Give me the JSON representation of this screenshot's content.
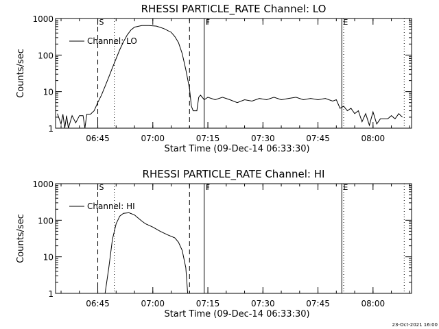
{
  "footer": {
    "timestamp": "23-Oct-2021 16:00"
  },
  "chart_data": [
    {
      "type": "line",
      "title": "RHESSI PARTICLE_RATE Channel: LO",
      "xlabel": "Start Time (09-Dec-14 06:33:30)",
      "ylabel": "Counts/sec",
      "yscale": "log",
      "xlim": [
        "06:33:30",
        "08:10:30"
      ],
      "ylim": [
        1,
        1000
      ],
      "x_ticks": [
        "06:45",
        "07:00",
        "07:15",
        "07:30",
        "07:45",
        "08:00"
      ],
      "y_ticks": [
        "1",
        "10",
        "100",
        "1000"
      ],
      "legend": {
        "position": "top-left",
        "entries": [
          "Channel: LO"
        ]
      },
      "series": [
        {
          "name": "Channel: LO",
          "color": "#000000",
          "points": [
            [
              "06:34:00",
              2.5
            ],
            [
              "06:35:00",
              1.3
            ],
            [
              "06:35:30",
              2.4
            ],
            [
              "06:36:00",
              1.0
            ],
            [
              "06:36:30",
              2.2
            ],
            [
              "06:37:00",
              1.0
            ],
            [
              "06:38:00",
              2.2
            ],
            [
              "06:39:00",
              1.4
            ],
            [
              "06:40:00",
              2.2
            ],
            [
              "06:41:00",
              2.2
            ],
            [
              "06:41:30",
              1.0
            ],
            [
              "06:42:00",
              2.4
            ],
            [
              "06:43:00",
              2.4
            ],
            [
              "06:44:00",
              3.0
            ],
            [
              "06:45:00",
              5.0
            ],
            [
              "06:46:00",
              8.0
            ],
            [
              "06:47:00",
              14.0
            ],
            [
              "06:48:00",
              25.0
            ],
            [
              "06:49:00",
              45.0
            ],
            [
              "06:50:00",
              80.0
            ],
            [
              "06:51:00",
              140.0
            ],
            [
              "06:52:00",
              230.0
            ],
            [
              "06:53:00",
              350.0
            ],
            [
              "06:54:00",
              480.0
            ],
            [
              "06:55:00",
              580.0
            ],
            [
              "06:57:00",
              640.0
            ],
            [
              "06:59:00",
              640.0
            ],
            [
              "07:01:00",
              620.0
            ],
            [
              "07:03:00",
              530.0
            ],
            [
              "07:05:00",
              420.0
            ],
            [
              "07:06:00",
              320.0
            ],
            [
              "07:07:00",
              220.0
            ],
            [
              "07:08:00",
              110.0
            ],
            [
              "07:09:00",
              40.0
            ],
            [
              "07:10:00",
              12.0
            ],
            [
              "07:10:30",
              4.0
            ],
            [
              "07:11:00",
              3.0
            ],
            [
              "07:12:00",
              3.0
            ],
            [
              "07:12:30",
              7.0
            ],
            [
              "07:13:00",
              8.0
            ],
            [
              "07:14:00",
              6.0
            ],
            [
              "07:15:00",
              7.0
            ],
            [
              "07:17:00",
              6.0
            ],
            [
              "07:19:00",
              7.0
            ],
            [
              "07:21:00",
              6.0
            ],
            [
              "07:23:00",
              5.0
            ],
            [
              "07:25:00",
              6.0
            ],
            [
              "07:27:00",
              5.5
            ],
            [
              "07:29:00",
              6.5
            ],
            [
              "07:31:00",
              6.0
            ],
            [
              "07:33:00",
              7.0
            ],
            [
              "07:35:00",
              6.0
            ],
            [
              "07:37:00",
              6.5
            ],
            [
              "07:39:00",
              7.0
            ],
            [
              "07:41:00",
              6.0
            ],
            [
              "07:43:00",
              6.5
            ],
            [
              "07:45:00",
              6.0
            ],
            [
              "07:47:00",
              6.5
            ],
            [
              "07:49:00",
              5.5
            ],
            [
              "07:50:00",
              6.0
            ],
            [
              "07:51:00",
              3.5
            ],
            [
              "07:52:00",
              4.0
            ],
            [
              "07:53:00",
              3.0
            ],
            [
              "07:54:00",
              3.5
            ],
            [
              "07:55:00",
              2.5
            ],
            [
              "07:56:00",
              3.0
            ],
            [
              "07:57:00",
              1.5
            ],
            [
              "07:58:00",
              2.5
            ],
            [
              "07:59:00",
              1.2
            ],
            [
              "08:00:00",
              2.8
            ],
            [
              "08:01:00",
              1.3
            ],
            [
              "08:02:00",
              1.8
            ],
            [
              "08:04:00",
              1.8
            ],
            [
              "08:05:00",
              2.2
            ],
            [
              "08:06:00",
              1.8
            ],
            [
              "08:07:00",
              2.5
            ],
            [
              "08:08:00",
              2.0
            ]
          ]
        }
      ],
      "markers": [
        {
          "time": "06:45:00",
          "style": "dashed",
          "label": "S"
        },
        {
          "time": "06:49:30",
          "style": "dotted",
          "label": ""
        },
        {
          "time": "07:10:00",
          "style": "dashed",
          "label": ""
        },
        {
          "time": "07:14:00",
          "style": "solid",
          "label": "F"
        },
        {
          "time": "07:51:30",
          "style": "solid",
          "label": "E"
        },
        {
          "time": "07:52:00",
          "style": "dotted",
          "label": ""
        },
        {
          "time": "08:08:30",
          "style": "dotted",
          "label": ""
        }
      ]
    },
    {
      "type": "line",
      "title": "RHESSI PARTICLE_RATE Channel: HI",
      "xlabel": "Start Time (09-Dec-14 06:33:30)",
      "ylabel": "Counts/sec",
      "yscale": "log",
      "xlim": [
        "06:33:30",
        "08:10:30"
      ],
      "ylim": [
        1,
        1000
      ],
      "x_ticks": [
        "06:45",
        "07:00",
        "07:15",
        "07:30",
        "07:45",
        "08:00"
      ],
      "y_ticks": [
        "1",
        "10",
        "100",
        "1000"
      ],
      "legend": {
        "position": "top-left",
        "entries": [
          "Channel: HI"
        ]
      },
      "series": [
        {
          "name": "Channel: HI",
          "color": "#000000",
          "points": [
            [
              "06:47:00",
              1.0
            ],
            [
              "06:48:00",
              5.0
            ],
            [
              "06:49:00",
              30.0
            ],
            [
              "06:50:00",
              80.0
            ],
            [
              "06:51:00",
              130.0
            ],
            [
              "06:52:00",
              155.0
            ],
            [
              "06:53:30",
              160.0
            ],
            [
              "06:55:00",
              140.0
            ],
            [
              "06:56:00",
              115.0
            ],
            [
              "06:57:00",
              95.0
            ],
            [
              "06:58:00",
              80.0
            ],
            [
              "07:00:00",
              65.0
            ],
            [
              "07:02:00",
              50.0
            ],
            [
              "07:04:00",
              40.0
            ],
            [
              "07:06:00",
              33.0
            ],
            [
              "07:07:00",
              25.0
            ],
            [
              "07:08:00",
              15.0
            ],
            [
              "07:09:00",
              5.0
            ],
            [
              "07:09:30",
              1.0
            ]
          ]
        }
      ],
      "markers": [
        {
          "time": "06:45:00",
          "style": "dashed",
          "label": "S"
        },
        {
          "time": "06:49:30",
          "style": "dotted",
          "label": ""
        },
        {
          "time": "07:10:00",
          "style": "dashed",
          "label": ""
        },
        {
          "time": "07:14:00",
          "style": "solid",
          "label": "F"
        },
        {
          "time": "07:51:30",
          "style": "solid",
          "label": "E"
        },
        {
          "time": "07:52:00",
          "style": "dotted",
          "label": ""
        },
        {
          "time": "08:08:30",
          "style": "dotted",
          "label": ""
        }
      ]
    }
  ]
}
